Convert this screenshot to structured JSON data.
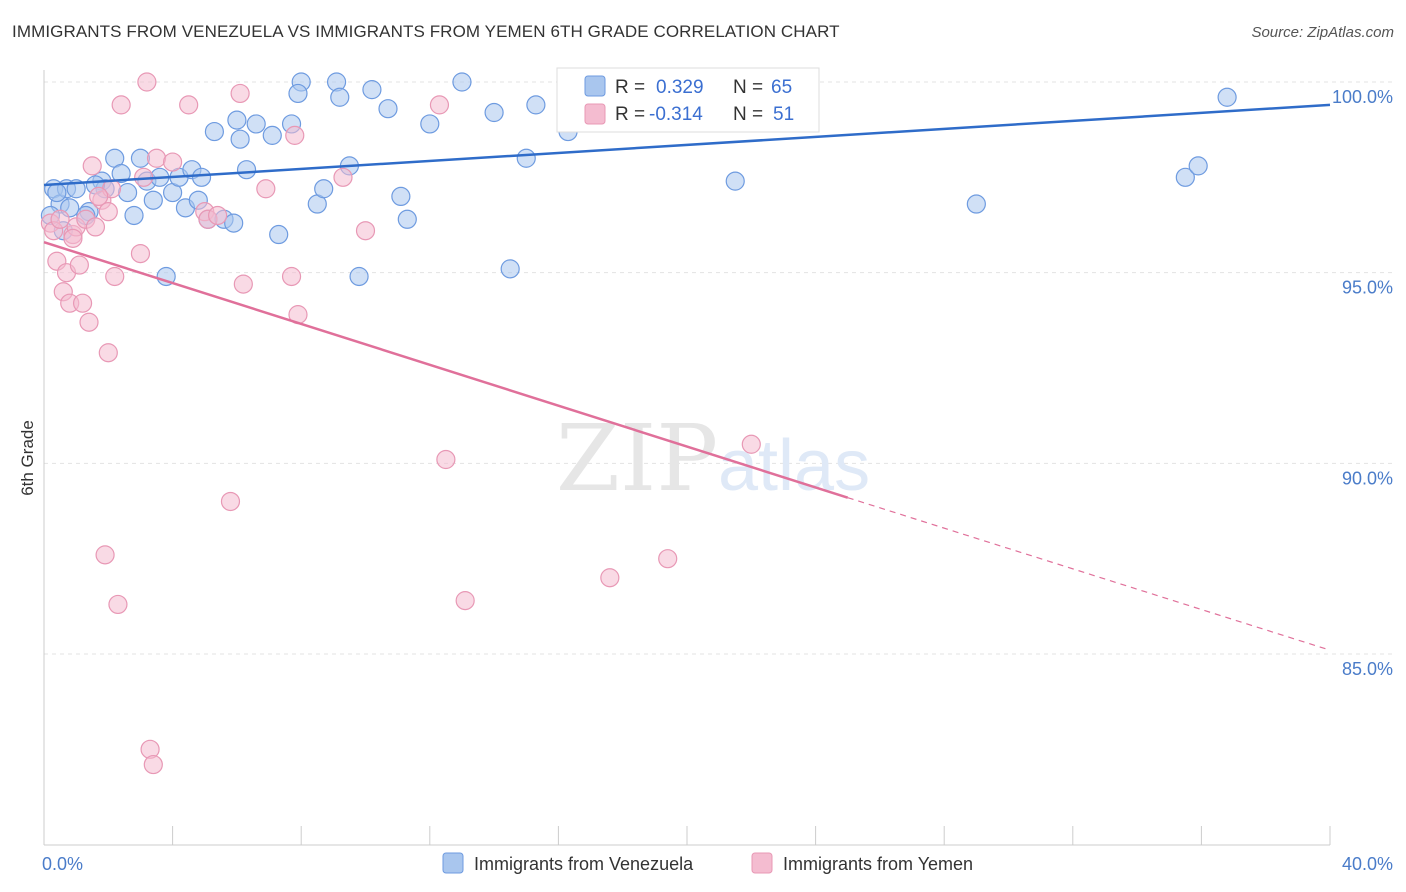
{
  "title": "IMMIGRANTS FROM VENEZUELA VS IMMIGRANTS FROM YEMEN 6TH GRADE CORRELATION CHART",
  "source": "Source: ZipAtlas.com",
  "watermark": {
    "zip": "ZIP",
    "atlas": "atlas"
  },
  "colors": {
    "venezuela_fill": "#a9c6ee",
    "venezuela_stroke": "#6e9be0",
    "venezuela_line": "#2f6cc9",
    "yemen_fill": "#f4bcd0",
    "yemen_stroke": "#e898b5",
    "yemen_line": "#e0709a",
    "axis_text": "#4a7cc9",
    "grid": "#e3e3e3"
  },
  "legend": {
    "rows": [
      {
        "r_label": "R =",
        "r_value": "0.329",
        "n_label": "N =",
        "n_value": "65"
      },
      {
        "r_label": "R =",
        "r_value": "-0.314",
        "n_label": "N =",
        "n_value": "51"
      }
    ]
  },
  "chart_data": {
    "type": "scatter",
    "xlabel": "",
    "ylabel": "6th Grade",
    "xlim": [
      0,
      40
    ],
    "ylim": [
      80.5,
      101.5
    ],
    "x_tick_labels": [
      {
        "value": 0,
        "label": "0.0%"
      },
      {
        "value": 40,
        "label": "40.0%"
      }
    ],
    "y_ticks": [
      {
        "value": 100,
        "label": "100.0%"
      },
      {
        "value": 95,
        "label": "95.0%"
      },
      {
        "value": 90,
        "label": "90.0%"
      },
      {
        "value": 85,
        "label": "85.0%"
      }
    ],
    "legend_position": "top-center",
    "series": [
      {
        "name": "Immigrants from Venezuela",
        "points": [
          [
            0.3,
            97.2
          ],
          [
            0.5,
            96.8
          ],
          [
            0.6,
            96.1
          ],
          [
            0.2,
            96.5
          ],
          [
            0.7,
            97.2
          ],
          [
            1.0,
            97.2
          ],
          [
            1.4,
            96.6
          ],
          [
            1.3,
            96.5
          ],
          [
            1.8,
            97.4
          ],
          [
            1.9,
            97.2
          ],
          [
            2.2,
            98.0
          ],
          [
            2.4,
            97.6
          ],
          [
            2.6,
            97.1
          ],
          [
            2.8,
            96.5
          ],
          [
            3.0,
            98.0
          ],
          [
            3.2,
            97.4
          ],
          [
            3.4,
            96.9
          ],
          [
            3.6,
            97.5
          ],
          [
            3.8,
            94.9
          ],
          [
            4.0,
            97.1
          ],
          [
            4.2,
            97.5
          ],
          [
            4.4,
            96.7
          ],
          [
            4.6,
            97.7
          ],
          [
            4.8,
            96.9
          ],
          [
            4.9,
            97.5
          ],
          [
            5.1,
            96.4
          ],
          [
            5.3,
            98.7
          ],
          [
            5.6,
            96.4
          ],
          [
            5.9,
            96.3
          ],
          [
            6.0,
            99.0
          ],
          [
            6.1,
            98.5
          ],
          [
            6.3,
            97.7
          ],
          [
            6.6,
            98.9
          ],
          [
            7.1,
            98.6
          ],
          [
            7.3,
            96.0
          ],
          [
            7.7,
            98.9
          ],
          [
            8.0,
            100.0
          ],
          [
            7.9,
            99.7
          ],
          [
            8.5,
            96.8
          ],
          [
            8.7,
            97.2
          ],
          [
            9.1,
            100.0
          ],
          [
            9.2,
            99.6
          ],
          [
            9.5,
            97.8
          ],
          [
            9.8,
            94.9
          ],
          [
            10.2,
            99.8
          ],
          [
            10.7,
            99.3
          ],
          [
            11.1,
            97.0
          ],
          [
            11.3,
            96.4
          ],
          [
            12.0,
            98.9
          ],
          [
            13.0,
            100.0
          ],
          [
            14.0,
            99.2
          ],
          [
            14.5,
            95.1
          ],
          [
            15.0,
            98.0
          ],
          [
            15.3,
            99.4
          ],
          [
            16.3,
            98.7
          ],
          [
            17.3,
            100.0
          ],
          [
            21.5,
            97.4
          ],
          [
            22.8,
            100.0
          ],
          [
            29.0,
            96.8
          ],
          [
            35.5,
            97.5
          ],
          [
            35.9,
            97.8
          ],
          [
            36.8,
            99.6
          ],
          [
            0.4,
            97.1
          ],
          [
            0.8,
            96.7
          ],
          [
            1.6,
            97.3
          ]
        ]
      },
      {
        "name": "Immigrants from Yemen",
        "points": [
          [
            0.2,
            96.3
          ],
          [
            0.3,
            96.1
          ],
          [
            0.4,
            95.3
          ],
          [
            0.5,
            96.4
          ],
          [
            0.6,
            94.5
          ],
          [
            0.7,
            95.0
          ],
          [
            0.8,
            94.2
          ],
          [
            0.9,
            96.0
          ],
          [
            1.0,
            96.2
          ],
          [
            1.1,
            95.2
          ],
          [
            1.2,
            94.2
          ],
          [
            1.3,
            96.4
          ],
          [
            1.4,
            93.7
          ],
          [
            1.5,
            97.8
          ],
          [
            1.6,
            96.2
          ],
          [
            1.8,
            96.9
          ],
          [
            1.9,
            87.6
          ],
          [
            2.0,
            92.9
          ],
          [
            2.1,
            97.2
          ],
          [
            2.2,
            94.9
          ],
          [
            2.3,
            86.3
          ],
          [
            2.4,
            99.4
          ],
          [
            3.0,
            95.5
          ],
          [
            3.1,
            97.5
          ],
          [
            3.2,
            100.0
          ],
          [
            3.3,
            82.5
          ],
          [
            3.4,
            82.1
          ],
          [
            3.5,
            98.0
          ],
          [
            4.0,
            97.9
          ],
          [
            4.5,
            99.4
          ],
          [
            5.0,
            96.6
          ],
          [
            5.1,
            96.4
          ],
          [
            5.4,
            96.5
          ],
          [
            5.8,
            89.0
          ],
          [
            6.1,
            99.7
          ],
          [
            6.2,
            94.7
          ],
          [
            6.9,
            97.2
          ],
          [
            7.7,
            94.9
          ],
          [
            7.8,
            98.6
          ],
          [
            7.9,
            93.9
          ],
          [
            9.3,
            97.5
          ],
          [
            10.0,
            96.1
          ],
          [
            12.3,
            99.4
          ],
          [
            12.5,
            90.1
          ],
          [
            13.1,
            86.4
          ],
          [
            17.6,
            87.0
          ],
          [
            19.4,
            87.5
          ],
          [
            22.0,
            90.5
          ],
          [
            0.9,
            95.9
          ],
          [
            1.7,
            97.0
          ],
          [
            2.0,
            96.6
          ]
        ]
      }
    ],
    "trend_lines": [
      {
        "series": "Immigrants from Venezuela",
        "from": [
          0,
          97.3
        ],
        "to": [
          40,
          99.4
        ]
      },
      {
        "series": "Immigrants from Yemen",
        "from": [
          0,
          95.8
        ],
        "to": [
          25,
          89.1
        ],
        "dashed_to": [
          40,
          85.1
        ]
      }
    ]
  },
  "bottom_legend": [
    {
      "label": "Immigrants from Venezuela"
    },
    {
      "label": "Immigrants from Yemen"
    }
  ]
}
